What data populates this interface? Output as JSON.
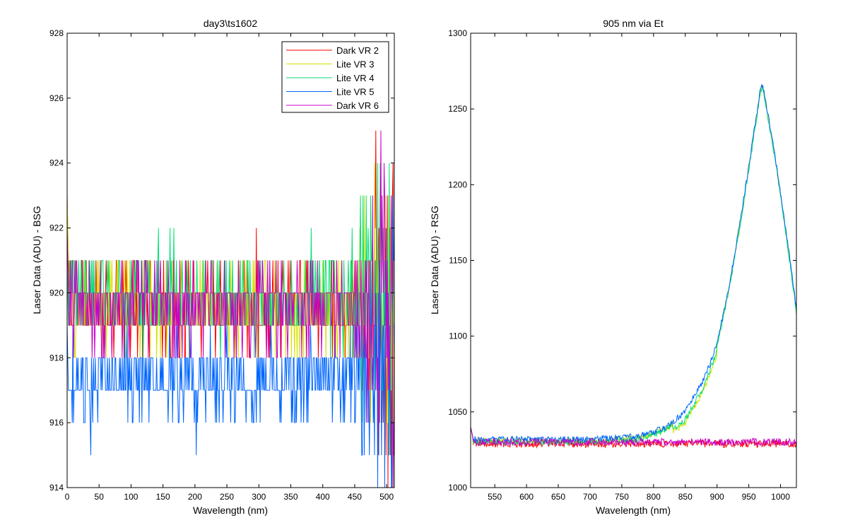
{
  "chart_data": [
    {
      "type": "line",
      "title": "day3\\ts1602",
      "xlabel": "Wavelength (nm)",
      "ylabel": "Laser Data (ADU) - BSG",
      "xlim": [
        0,
        512
      ],
      "ylim": [
        914,
        928
      ],
      "xticks": [
        0,
        50,
        100,
        150,
        200,
        250,
        300,
        350,
        400,
        450,
        500
      ],
      "yticks": [
        914,
        916,
        918,
        920,
        922,
        924,
        926,
        928
      ],
      "grid": false,
      "legend_position": "top-right",
      "series": [
        {
          "name": "Dark VR 2",
          "color": "#ff0000",
          "baseline": 919.6,
          "noise": 1.0,
          "start": 922.5
        },
        {
          "name": "Lite VR 3",
          "color": "#d4e000",
          "baseline": 919.6,
          "noise": 1.0,
          "start": 923.0
        },
        {
          "name": "Lite VR 4",
          "color": "#00e070",
          "baseline": 919.9,
          "noise": 1.0,
          "start": 921.0
        },
        {
          "name": "Lite VR 5",
          "color": "#0066ff",
          "baseline": 917.3,
          "noise": 1.0,
          "start": 919.0
        },
        {
          "name": "Dark VR 6",
          "color": "#c800c8",
          "baseline": 919.6,
          "noise": 1.0,
          "start": 921.5
        }
      ]
    },
    {
      "type": "line",
      "title": "905 nm via Et",
      "xlabel": "Wavelength (nm)",
      "ylabel": "Laser Data (ADU) - RSG",
      "xlim": [
        512,
        1025
      ],
      "ylim": [
        1000,
        1300
      ],
      "xticks": [
        550,
        600,
        650,
        700,
        750,
        800,
        850,
        900,
        950,
        1000
      ],
      "yticks": [
        1000,
        1050,
        1100,
        1150,
        1200,
        1250,
        1300
      ],
      "grid": false,
      "series": [
        {
          "name": "Dark VR 2",
          "color": "#ff0000",
          "shape": "flat",
          "level": 1029,
          "noise": 2
        },
        {
          "name": "Lite VR 3",
          "color": "#d4e000",
          "shape": "peak",
          "level": 1031,
          "noise": 2
        },
        {
          "name": "Lite VR 4",
          "color": "#00e070",
          "shape": "peak",
          "level": 1030,
          "noise": 2
        },
        {
          "name": "Lite VR 5",
          "color": "#0066ff",
          "shape": "peak",
          "level": 1032,
          "noise": 2
        },
        {
          "name": "Dark VR 6",
          "color": "#c800c8",
          "shape": "flat",
          "level": 1030,
          "noise": 2
        }
      ],
      "peak_profile": [
        [
          512,
          1032
        ],
        [
          700,
          1032
        ],
        [
          780,
          1034
        ],
        [
          820,
          1040
        ],
        [
          850,
          1050
        ],
        [
          880,
          1072
        ],
        [
          900,
          1095
        ],
        [
          920,
          1135
        ],
        [
          940,
          1185
        ],
        [
          950,
          1212
        ],
        [
          960,
          1240
        ],
        [
          968,
          1262
        ],
        [
          972,
          1266
        ],
        [
          985,
          1235
        ],
        [
          1000,
          1195
        ],
        [
          1015,
          1150
        ],
        [
          1025,
          1118
        ]
      ]
    }
  ]
}
